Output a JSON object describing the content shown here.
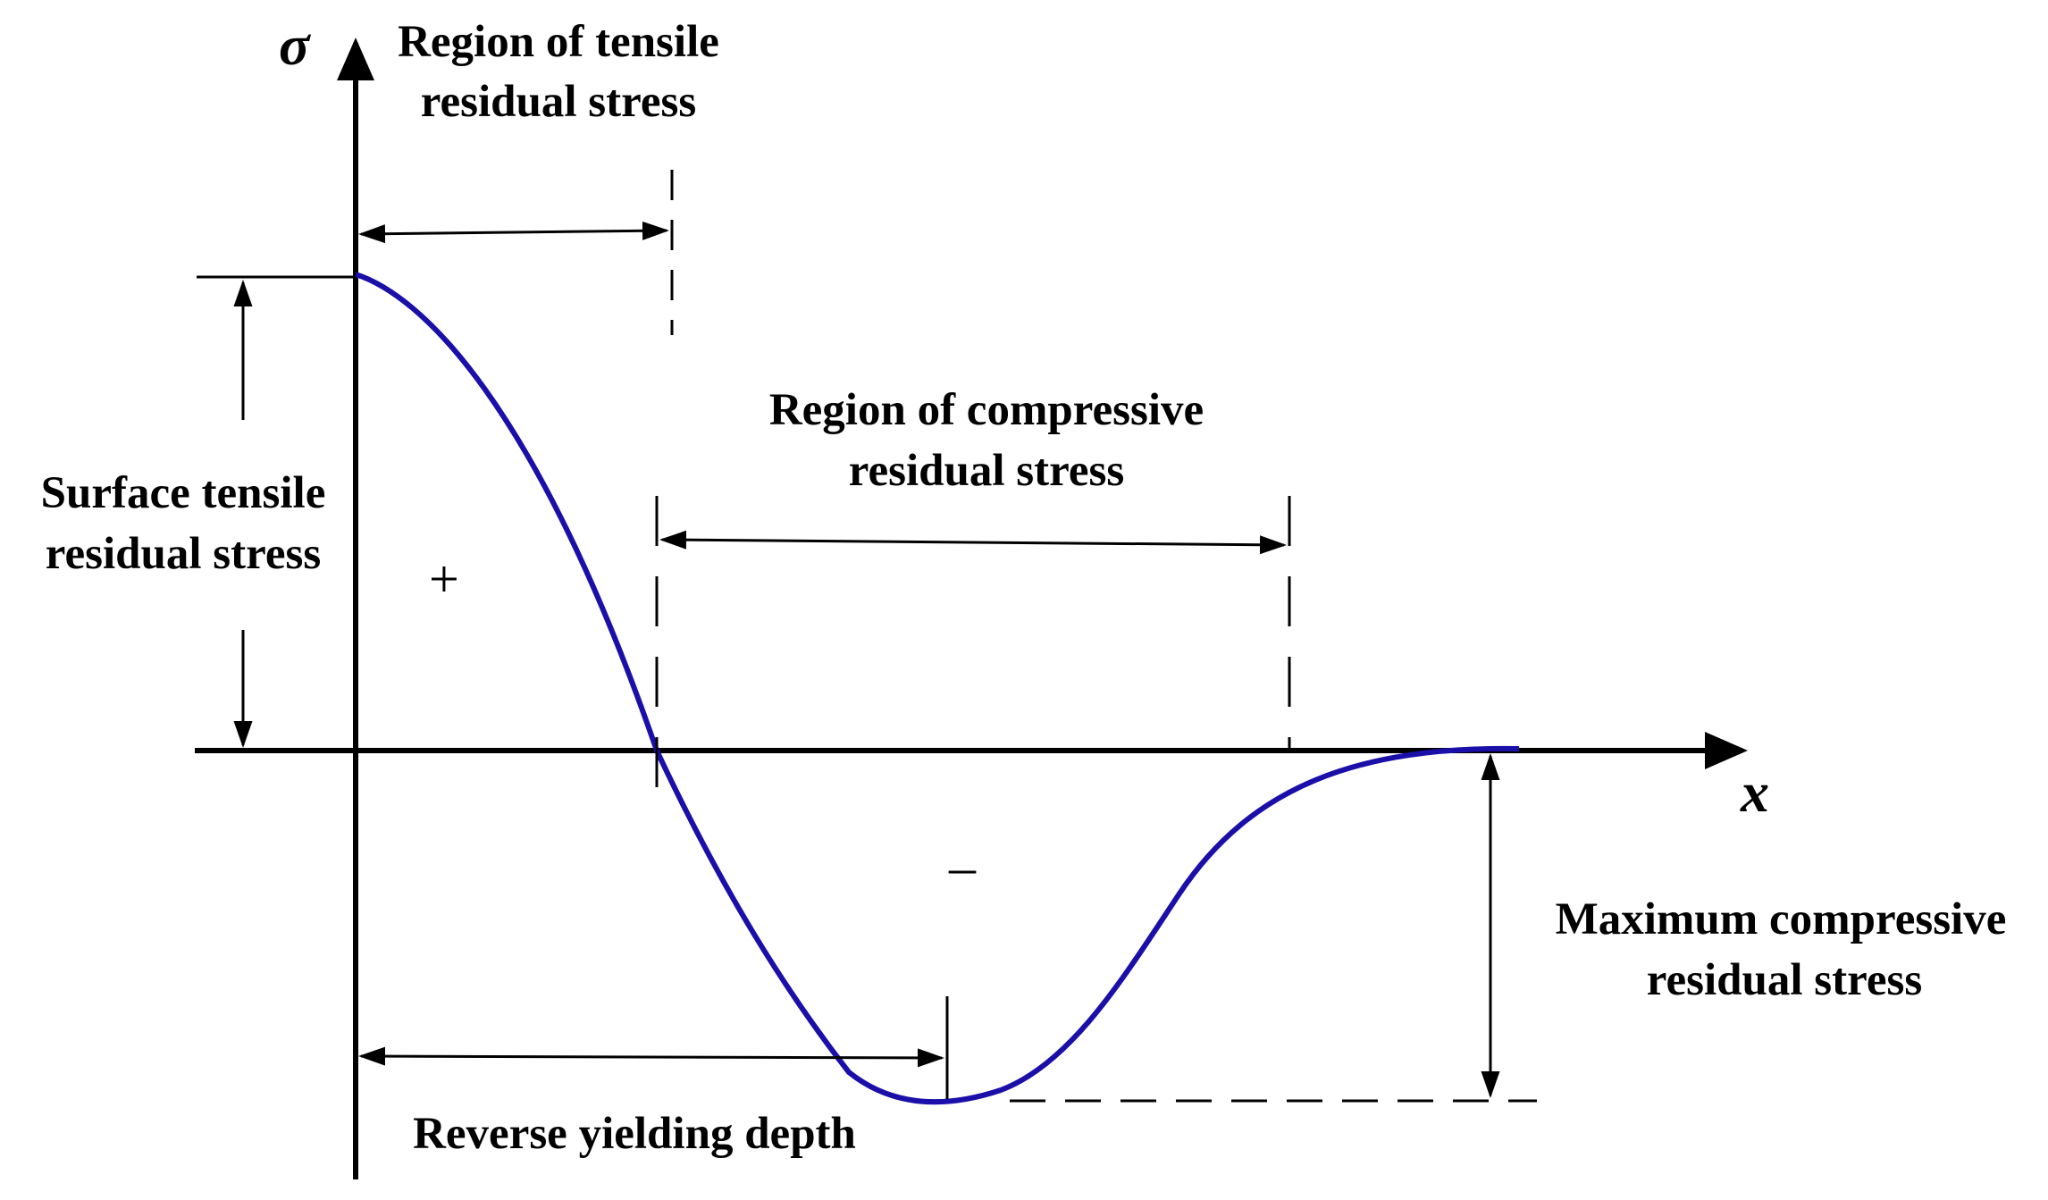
{
  "axes": {
    "y_symbol": "σ",
    "x_symbol": "x"
  },
  "labels": {
    "tensile_region": [
      "Region of tensile",
      "residual stress"
    ],
    "compressive_region": [
      "Region of compressive",
      "residual stress"
    ],
    "surface_tensile": [
      "Surface tensile",
      "residual stress"
    ],
    "max_compressive": [
      "Maximum compressive",
      "residual stress"
    ],
    "reverse_yielding": "Reverse yielding depth"
  },
  "signs": {
    "positive": "+",
    "negative": "–"
  },
  "colors": {
    "curve": "#1a0fa8",
    "lines": "#000000"
  }
}
